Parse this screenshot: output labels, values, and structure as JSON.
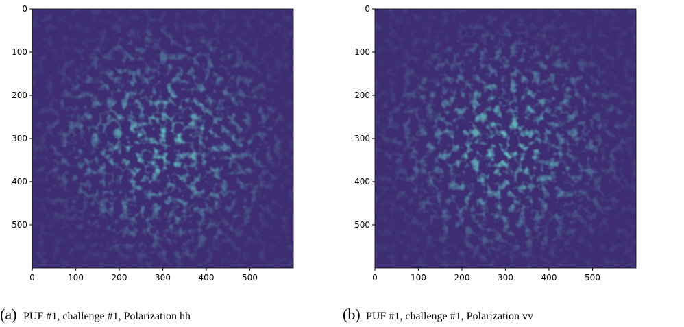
{
  "chart_data": [
    {
      "type": "image",
      "xlim": [
        0,
        600
      ],
      "ylim": [
        600,
        0
      ],
      "xticks": [
        0,
        100,
        200,
        300,
        400,
        500
      ],
      "yticks": [
        0,
        100,
        200,
        300,
        400,
        500
      ],
      "label": "(a)",
      "caption": "PUF #1, challenge #1, Polarization hh"
    },
    {
      "type": "image",
      "xlim": [
        0,
        600
      ],
      "ylim": [
        600,
        0
      ],
      "xticks": [
        0,
        100,
        200,
        300,
        400,
        500
      ],
      "yticks": [
        0,
        100,
        200,
        300,
        400,
        500
      ],
      "label": "(b)",
      "caption": "PUF #1, challenge #1, Polarization vv"
    }
  ]
}
